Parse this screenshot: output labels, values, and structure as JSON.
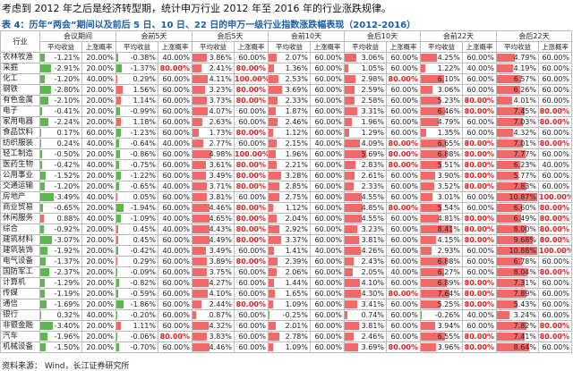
{
  "intro": "考虑到 2012 年之后是经济转型期，统计申万行业 2012 年至 2016 年的行业涨跌规律。",
  "table_title": "表 4：历年“两会”期间以及前后 5 日、10 日、22 日的申万一级行业指数涨跌幅表现（2012-2016）",
  "industry_header": "行业",
  "groups": [
    "会议期间",
    "会前5天",
    "会后5天",
    "会前10天",
    "会后10天",
    "会前22天",
    "会后22天"
  ],
  "sub_headers": [
    "平均收益",
    "上涨概率"
  ],
  "source": "资料来源：  Wind，长江证券研究所",
  "colors": {
    "positive_bar": "#f06a6a",
    "negative_bar": "#5cb84c",
    "high_prob": "#e21f1f",
    "title": "#1a5fa8"
  },
  "max_abs": 11,
  "rows": [
    {
      "name": "农林牧渔",
      "vals": [
        "-1.21%",
        "20.00%",
        "-0.38%",
        "40.00%",
        "3.86%",
        "60.00%",
        "2.07%",
        "60.00%",
        "3.06%",
        "60.00%",
        "4.25%",
        "60.00%",
        "4.79%",
        "60.00%"
      ]
    },
    {
      "name": "采掘",
      "vals": [
        "-2.91%",
        "20.00%",
        "-1.37%",
        "80.00%",
        "2.41%",
        "80.00%",
        "1.36%",
        "60.00%",
        "1.05%",
        "60.00%",
        "1.22%",
        "40.00%",
        "4.19%",
        "60.00%"
      ]
    },
    {
      "name": "化工",
      "vals": [
        "-1.20%",
        "40.00%",
        "0.29%",
        "60.00%",
        "4.11%",
        "100.00%",
        "2.53%",
        "60.00%",
        "2.98%",
        "80.00%",
        "6.10%",
        "60.00%",
        "6.57%",
        "60.00%"
      ]
    },
    {
      "name": "钢铁",
      "vals": [
        "-2.80%",
        "20.00%",
        "1.56%",
        "60.00%",
        "3.23%",
        "80.00%",
        "3.69%",
        "60.00%",
        "2.59%",
        "60.00%",
        "3.06%",
        "60.00%",
        "6.26%",
        "60.00%"
      ]
    },
    {
      "name": "有色金属",
      "vals": [
        "-2.10%",
        "20.00%",
        "1.14%",
        "60.00%",
        "3.73%",
        "80.00%",
        "2.33%",
        "60.00%",
        "2.58%",
        "60.00%",
        "5.23%",
        "80.00%",
        "4.01%",
        "60.00%"
      ]
    },
    {
      "name": "电子",
      "vals": [
        "-0.41%",
        "20.00%",
        "-0.99%",
        "60.00%",
        "4.07%",
        "60.00%",
        "1.87%",
        "60.00%",
        "3.31%",
        "60.00%",
        "6.46%",
        "80.00%",
        "7.45%",
        "80.00%"
      ]
    },
    {
      "name": "家用电器",
      "vals": [
        "-2.24%",
        "20.00%",
        "1.18%",
        "60.00%",
        "2.63%",
        "60.00%",
        "2.46%",
        "60.00%",
        "1.96%",
        "60.00%",
        "4.79%",
        "60.00%",
        "7.03%",
        "80.00%"
      ]
    },
    {
      "name": "食品饮料",
      "vals": [
        "0.17%",
        "60.00%",
        "-1.23%",
        "60.00%",
        "1.73%",
        "80.00%",
        "1.12%",
        "60.00%",
        "1.29%",
        "60.00%",
        "1.35%",
        "60.00%",
        "4.32%",
        "60.00%"
      ]
    },
    {
      "name": "纺织服装",
      "vals": [
        "0.24%",
        "40.00%",
        "-0.64%",
        "40.00%",
        "2.77%",
        "60.00%",
        "2.15%",
        "40.00%",
        "4.09%",
        "80.00%",
        "6.65%",
        "80.00%",
        "7.01%",
        "80.00%"
      ]
    },
    {
      "name": "轻工制造",
      "vals": [
        "-0.50%",
        "20.00%",
        "-0.86%",
        "60.00%",
        "4.98%",
        "100.00%",
        "1.96%",
        "60.00%",
        "5.69%",
        "80.00%",
        "6.88%",
        "80.00%",
        "7.77%",
        "60.00%"
      ]
    },
    {
      "name": "医药生物",
      "vals": [
        "-0.42%",
        "40.00%",
        "-0.75%",
        "60.00%",
        "3.61%",
        "80.00%",
        "2.21%",
        "60.00%",
        "2.83%",
        "80.00%",
        "5.51%",
        "80.00%",
        "6.23%",
        "40.00%"
      ]
    },
    {
      "name": "公用事业",
      "vals": [
        "-1.52%",
        "20.00%",
        "-1.22%",
        "60.00%",
        "3.49%",
        "80.00%",
        "3.28%",
        "60.00%",
        "2.61%",
        "60.00%",
        "3.90%",
        "80.00%",
        "5.77%",
        "60.00%"
      ]
    },
    {
      "name": "交通运输",
      "vals": [
        "-1.20%",
        "20.00%",
        "-0.65%",
        "40.00%",
        "3.71%",
        "80.00%",
        "2.85%",
        "60.00%",
        "2.33%",
        "60.00%",
        "3.52%",
        "80.00%",
        "7.83%",
        "60.00%"
      ]
    },
    {
      "name": "房地产",
      "vals": [
        "-3.49%",
        "40.00%",
        "0.05%",
        "60.00%",
        "3.81%",
        "60.00%",
        "2.75%",
        "60.00%",
        "4.55%",
        "60.00%",
        "3.01%",
        "60.00%",
        "10.87%",
        "100.00%"
      ]
    },
    {
      "name": "商业贸易",
      "vals": [
        "-0.65%",
        "20.00%",
        "-1.94%",
        "60.00%",
        "4.46%",
        "80.00%",
        "1.12%",
        "60.00%",
        "4.85%",
        "80.00%",
        "5.54%",
        "60.00%",
        "6.60%",
        "80.00%"
      ]
    },
    {
      "name": "休闲服务",
      "vals": [
        "0.88%",
        "40.00%",
        "-1.09%",
        "40.00%",
        "4.65%",
        "80.00%",
        "2.04%",
        "60.00%",
        "4.55%",
        "60.00%",
        "4.81%",
        "80.00%",
        "6.49%",
        "80.00%"
      ]
    },
    {
      "name": "综合",
      "vals": [
        "-0.92%",
        "20.00%",
        "0.45%",
        "40.00%",
        "4.43%",
        "80.00%",
        "2.92%",
        "60.00%",
        "3.23%",
        "60.00%",
        "8.41%",
        "80.00%",
        "8.00%",
        "80.00%"
      ]
    },
    {
      "name": "建筑材料",
      "vals": [
        "-3.07%",
        "20.00%",
        "0.45%",
        "60.00%",
        "4.49%",
        "80.00%",
        "3.37%",
        "60.00%",
        "3.81%",
        "60.00%",
        "4.15%",
        "80.00%",
        "9.68%",
        "80.00%"
      ]
    },
    {
      "name": "建筑装饰",
      "vals": [
        "-1.92%",
        "20.00%",
        "-0.42%",
        "40.00%",
        "3.49%",
        "60.00%",
        "1.41%",
        "40.00%",
        "4.26%",
        "60.00%",
        "2.93%",
        "60.00%",
        "10.88%",
        "100.00%"
      ]
    },
    {
      "name": "电气设备",
      "vals": [
        "-1.37%",
        "20.00%",
        "0.29%",
        "60.00%",
        "3.89%",
        "80.00%",
        "2.39%",
        "60.00%",
        "2.43%",
        "60.00%",
        "6.88%",
        "60.00%",
        "6.78%",
        "60.00%"
      ]
    },
    {
      "name": "国防军工",
      "vals": [
        "-2.37%",
        "20.00%",
        "-0.09%",
        "60.00%",
        "3.75%",
        "60.00%",
        "2.06%",
        "60.00%",
        "2.05%",
        "40.00%",
        "6.27%",
        "60.00%",
        "8.04%",
        "80.00%"
      ]
    },
    {
      "name": "计算机",
      "vals": [
        "-1.29%",
        "20.00%",
        "-0.82%",
        "60.00%",
        "4.27%",
        "60.00%",
        "1.44%",
        "60.00%",
        "4.10%",
        "60.00%",
        "6.89%",
        "80.00%",
        "7.31%",
        "60.00%"
      ]
    },
    {
      "name": "传媒",
      "vals": [
        "-1.19%",
        "20.00%",
        "-0.59%",
        "60.00%",
        "4.10%",
        "60.00%",
        "1.65%",
        "60.00%",
        "4.30%",
        "80.00%",
        "7.64%",
        "80.00%",
        "7.89%",
        "60.00%"
      ]
    },
    {
      "name": "通信",
      "vals": [
        "-1.69%",
        "20.00%",
        "-1.86%",
        "60.00%",
        "2.44%",
        "80.00%",
        "1.09%",
        "60.00%",
        "3.41%",
        "60.00%",
        "5.25%",
        "80.00%",
        "5.43%",
        "60.00%"
      ]
    },
    {
      "name": "银行",
      "vals": [
        "0.32%",
        "40.00%",
        "-0.20%",
        "60.00%",
        "0.87%",
        "60.00%",
        "-0.25%",
        "60.00%",
        "0.74%",
        "60.00%",
        "-0.26%",
        "40.00%",
        "3.24%",
        "60.00%"
      ]
    },
    {
      "name": "非银金融",
      "vals": [
        "-3.40%",
        "20.00%",
        "1.11%",
        "60.00%",
        "4.32%",
        "60.00%",
        "2.01%",
        "60.00%",
        "3.81%",
        "60.00%",
        "3.94%",
        "60.00%",
        "7.82%",
        "80.00%"
      ]
    },
    {
      "name": "汽车",
      "vals": [
        "-1.96%",
        "20.00%",
        "-0.06%",
        "80.00%",
        "3.83%",
        "60.00%",
        "2.78%",
        "60.00%",
        "2.46%",
        "60.00%",
        "6.55%",
        "80.00%",
        "7.41%",
        "80.00%"
      ]
    },
    {
      "name": "机械设备",
      "vals": [
        "-1.50%",
        "20.00%",
        "-0.70%",
        "60.00%",
        "4.46%",
        "60.00%",
        "1.09%",
        "60.00%",
        "3.69%",
        "80.00%",
        "3.96%",
        "80.00%",
        "8.64%",
        "60.00%"
      ]
    }
  ]
}
